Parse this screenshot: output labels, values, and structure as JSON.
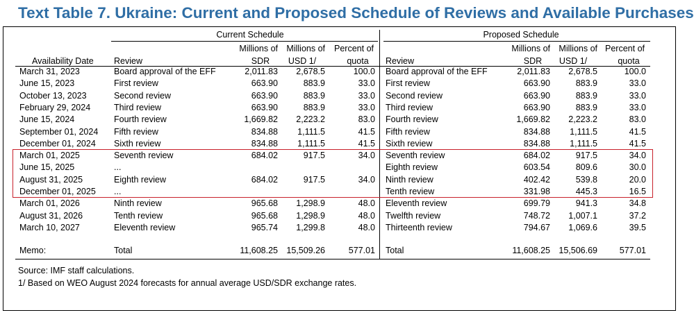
{
  "title": "Text Table 7. Ukraine: Current and Proposed Schedule of Reviews and Available Purchases",
  "current_header": "Current Schedule",
  "proposed_header": "Proposed Schedule",
  "columns": {
    "availability_date": "Availability Date",
    "review": "Review",
    "sdr_1": "Millions of",
    "sdr_2": "SDR",
    "usd_1": "Millions of",
    "usd_2": "USD 1/",
    "quota_1": "Percent of",
    "quota_2": "quota"
  },
  "rows": [
    {
      "date": "March 31, 2023",
      "c_review": "Board approval of the EFF",
      "c_sdr": "2,011.83",
      "c_usd": "2,678.5",
      "c_pct": "100.0",
      "p_review": "Board approval of the EFF",
      "p_sdr": "2,011.83",
      "p_usd": "2,678.5",
      "p_pct": "100.0"
    },
    {
      "date": "June 15, 2023",
      "c_review": "First review",
      "c_sdr": "663.90",
      "c_usd": "883.9",
      "c_pct": "33.0",
      "p_review": "First review",
      "p_sdr": "663.90",
      "p_usd": "883.9",
      "p_pct": "33.0"
    },
    {
      "date": "October 13, 2023",
      "c_review": "Second review",
      "c_sdr": "663.90",
      "c_usd": "883.9",
      "c_pct": "33.0",
      "p_review": "Second review",
      "p_sdr": "663.90",
      "p_usd": "883.9",
      "p_pct": "33.0"
    },
    {
      "date": "February 29, 2024",
      "c_review": "Third review",
      "c_sdr": "663.90",
      "c_usd": "883.9",
      "c_pct": "33.0",
      "p_review": "Third review",
      "p_sdr": "663.90",
      "p_usd": "883.9",
      "p_pct": "33.0"
    },
    {
      "date": "June 15, 2024",
      "c_review": "Fourth review",
      "c_sdr": "1,669.82",
      "c_usd": "2,223.2",
      "c_pct": "83.0",
      "p_review": "Fourth review",
      "p_sdr": "1,669.82",
      "p_usd": "2,223.2",
      "p_pct": "83.0"
    },
    {
      "date": "September 01, 2024",
      "c_review": "Fifth review",
      "c_sdr": "834.88",
      "c_usd": "1,111.5",
      "c_pct": "41.5",
      "p_review": "Fifth review",
      "p_sdr": "834.88",
      "p_usd": "1,111.5",
      "p_pct": "41.5"
    },
    {
      "date": "December 01, 2024",
      "c_review": "Sixth review",
      "c_sdr": "834.88",
      "c_usd": "1,111.5",
      "c_pct": "41.5",
      "p_review": "Sixth review",
      "p_sdr": "834.88",
      "p_usd": "1,111.5",
      "p_pct": "41.5"
    },
    {
      "date": "March 01, 2025",
      "c_review": "Seventh review",
      "c_sdr": "684.02",
      "c_usd": "917.5",
      "c_pct": "34.0",
      "p_review": "Seventh review",
      "p_sdr": "684.02",
      "p_usd": "917.5",
      "p_pct": "34.0"
    },
    {
      "date": "June 15, 2025",
      "c_review": "...",
      "c_sdr": "",
      "c_usd": "",
      "c_pct": "",
      "p_review": "Eighth review",
      "p_sdr": "603.54",
      "p_usd": "809.6",
      "p_pct": "30.0"
    },
    {
      "date": "August 31, 2025",
      "c_review": "Eighth review",
      "c_sdr": "684.02",
      "c_usd": "917.5",
      "c_pct": "34.0",
      "p_review": "Ninth review",
      "p_sdr": "402.42",
      "p_usd": "539.8",
      "p_pct": "20.0"
    },
    {
      "date": "December 01, 2025",
      "c_review": "...",
      "c_sdr": "",
      "c_usd": "",
      "c_pct": "",
      "p_review": "Tenth review",
      "p_sdr": "331.98",
      "p_usd": "445.3",
      "p_pct": "16.5"
    },
    {
      "date": "March 01, 2026",
      "c_review": "Ninth review",
      "c_sdr": "965.68",
      "c_usd": "1,298.9",
      "c_pct": "48.0",
      "p_review": "Eleventh review",
      "p_sdr": "699.79",
      "p_usd": "941.3",
      "p_pct": "34.8"
    },
    {
      "date": "August 31, 2026",
      "c_review": "Tenth review",
      "c_sdr": "965.68",
      "c_usd": "1,298.9",
      "c_pct": "48.0",
      "p_review": "Twelfth review",
      "p_sdr": "748.72",
      "p_usd": "1,007.1",
      "p_pct": "37.2"
    },
    {
      "date": "March 10, 2027",
      "c_review": "Eleventh review",
      "c_sdr": "965.74",
      "c_usd": "1,299.8",
      "c_pct": "48.0",
      "p_review": "Thirteenth review",
      "p_sdr": "794.67",
      "p_usd": "1,069.6",
      "p_pct": "39.5"
    }
  ],
  "memo": {
    "date": "Memo:",
    "c_review": "Total",
    "c_sdr": "11,608.25",
    "c_usd": "15,509.26",
    "c_pct": "577.01",
    "p_review": "Total",
    "p_sdr": "11,608.25",
    "p_usd": "15,506.69",
    "p_pct": "577.01"
  },
  "source": "Source: IMF staff calculations.",
  "footnote": "1/ Based on WEO August 2024 forecasts for annual average USD/SDR exchange rates.",
  "highlight_color": "#c8202a",
  "title_color": "#2f6ea5"
}
